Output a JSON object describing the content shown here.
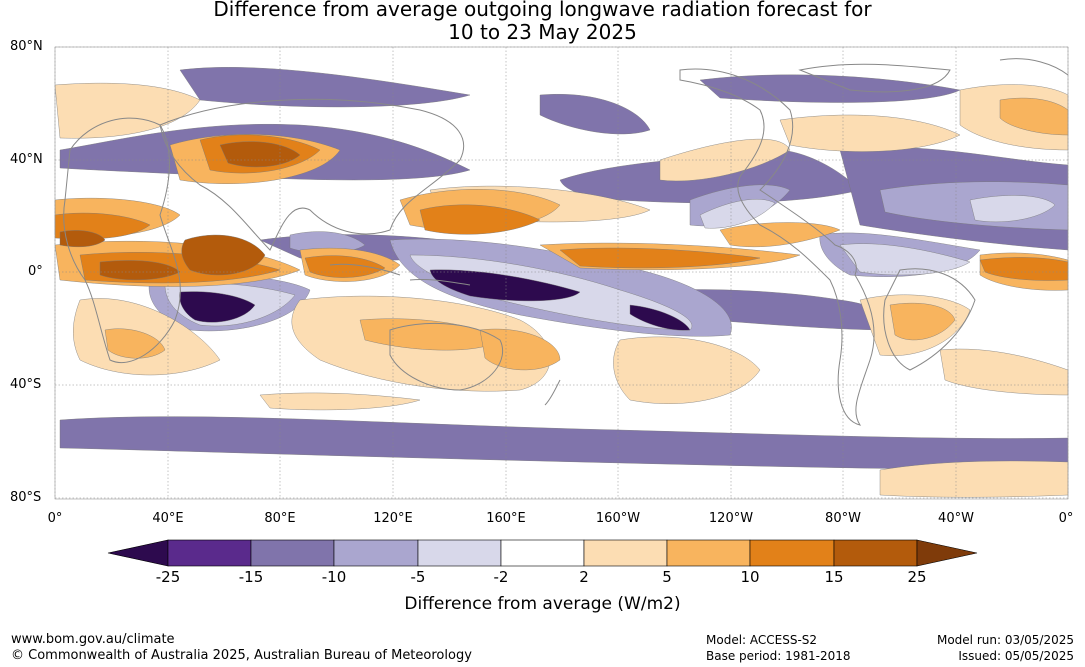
{
  "title": {
    "line1": "Difference from average outgoing longwave radiation forecast for",
    "line2": "10 to 23 May 2025"
  },
  "map": {
    "lat_labels": [
      "80°N",
      "40°N",
      "0°",
      "40°S",
      "80°S"
    ],
    "lon_labels": [
      "0°",
      "40°E",
      "80°E",
      "120°E",
      "160°E",
      "160°W",
      "120°W",
      "80°W",
      "40°W",
      "0°"
    ]
  },
  "colorbar": {
    "title": "Difference from average (W/m2)",
    "ticks": [
      "-25",
      "-15",
      "-10",
      "-5",
      "-2",
      "2",
      "5",
      "10",
      "15",
      "25"
    ],
    "colors": [
      "#2d0a4e",
      "#5a2a8c",
      "#8074ab",
      "#aaa6cf",
      "#d8d8ea",
      "#ffffff",
      "#fcddb3",
      "#f8b45e",
      "#e28119",
      "#b35b0c",
      "#7f3b0a"
    ]
  },
  "footer": {
    "website": "www.bom.gov.au/climate",
    "copyright": "© Commonwealth of Australia 2025, Australian Bureau of Meteorology",
    "model": "Model: ACCESS-S2",
    "base_period": "Base period: 1981-2018",
    "model_run": "Model run: 03/05/2025",
    "issued": "Issued: 05/05/2025"
  }
}
